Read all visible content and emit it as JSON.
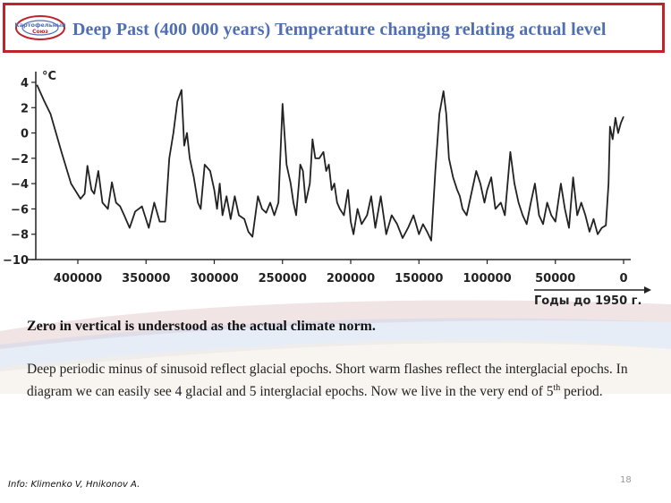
{
  "header": {
    "logo_text": "Картофельный Союз",
    "title": "Deep Past (400 000 years) Temperature changing relating actual level",
    "border_color": "#c0242b",
    "title_color": "#4f6fb4"
  },
  "chart_data": {
    "type": "line",
    "title": "",
    "ylabel": "°C",
    "xlabel": "Годы до 1950 г.",
    "ylim": [
      -10,
      4
    ],
    "xlim": [
      435000,
      -5000
    ],
    "yticks": [
      "4",
      "2",
      "0",
      "−2",
      "−4",
      "−6",
      "−8",
      "−10"
    ],
    "xticks": [
      "400000",
      "350000",
      "300000",
      "250000",
      "200000",
      "150000",
      "100000",
      "50000",
      "0"
    ],
    "grid": false,
    "x": [
      430000,
      425000,
      420000,
      412000,
      405000,
      398000,
      395000,
      393000,
      390000,
      388000,
      385000,
      382000,
      378000,
      375000,
      372000,
      369000,
      366000,
      362000,
      358000,
      353000,
      348000,
      344000,
      340000,
      336000,
      333000,
      330000,
      327000,
      324000,
      322000,
      320000,
      318000,
      315000,
      312000,
      310000,
      307000,
      303000,
      300000,
      298000,
      296000,
      294000,
      291000,
      288000,
      285000,
      282000,
      278000,
      275000,
      272000,
      268000,
      265000,
      262000,
      259000,
      256000,
      253000,
      250000,
      247000,
      244000,
      242000,
      240000,
      238000,
      237000,
      235000,
      233000,
      230000,
      228000,
      226000,
      223000,
      220000,
      218000,
      216000,
      214000,
      212000,
      210000,
      208000,
      205000,
      202000,
      200000,
      198000,
      195000,
      192000,
      188000,
      185000,
      182000,
      178000,
      174000,
      170000,
      166000,
      162000,
      158000,
      154000,
      150000,
      147000,
      144000,
      141000,
      138000,
      135000,
      132000,
      130000,
      128000,
      125000,
      122000,
      120000,
      118000,
      115000,
      112000,
      108000,
      105000,
      102000,
      100000,
      97000,
      94000,
      90000,
      87000,
      83000,
      80000,
      77000,
      74000,
      71000,
      68000,
      65000,
      62000,
      59000,
      56000,
      53000,
      50000,
      46000,
      43000,
      40000,
      37000,
      34000,
      31000,
      28000,
      25000,
      22000,
      19000,
      16000,
      13000,
      11000,
      10000,
      8000,
      6000,
      4000,
      2000,
      0
    ],
    "values": [
      3.8,
      2.6,
      1.5,
      -1.5,
      -4.0,
      -5.2,
      -4.8,
      -2.6,
      -4.5,
      -4.8,
      -3.0,
      -5.5,
      -6.0,
      -3.9,
      -5.5,
      -5.8,
      -6.5,
      -7.5,
      -6.2,
      -5.8,
      -7.5,
      -5.5,
      -7.0,
      -7.0,
      -2.0,
      0.0,
      2.5,
      3.4,
      -1.0,
      0.0,
      -2.0,
      -3.5,
      -5.5,
      -6.0,
      -2.5,
      -3.0,
      -4.5,
      -6.0,
      -4.0,
      -6.5,
      -5.0,
      -6.8,
      -5.0,
      -6.5,
      -6.8,
      -7.8,
      -8.2,
      -5.0,
      -6.0,
      -6.3,
      -5.5,
      -6.5,
      -5.5,
      2.3,
      -2.5,
      -4.0,
      -5.5,
      -6.5,
      -4.0,
      -2.5,
      -3.0,
      -5.5,
      -4.0,
      -0.5,
      -2.0,
      -2.0,
      -1.5,
      -3.0,
      -2.5,
      -4.5,
      -4.0,
      -5.5,
      -6.0,
      -6.5,
      -4.5,
      -7.0,
      -8.0,
      -6.0,
      -7.2,
      -6.5,
      -5.0,
      -7.5,
      -5.0,
      -8.0,
      -6.5,
      -7.2,
      -8.3,
      -7.5,
      -6.5,
      -8.0,
      -7.2,
      -7.8,
      -8.5,
      -3.0,
      1.5,
      3.3,
      1.5,
      -2.0,
      -3.5,
      -4.5,
      -5.0,
      -6.0,
      -6.5,
      -5.0,
      -3.0,
      -4.0,
      -5.5,
      -4.5,
      -3.5,
      -6.0,
      -5.5,
      -6.5,
      -1.5,
      -4.0,
      -5.5,
      -6.5,
      -7.2,
      -5.5,
      -4.0,
      -6.5,
      -7.2,
      -5.5,
      -6.5,
      -7.0,
      -4.0,
      -6.0,
      -7.5,
      -3.5,
      -6.5,
      -5.5,
      -6.5,
      -7.8,
      -6.8,
      -8.0,
      -7.5,
      -7.3,
      -4.0,
      0.5,
      -0.5,
      1.2,
      0.0,
      0.8,
      1.3
    ]
  },
  "body": {
    "zero_note": "Zero in vertical is understood as the actual climate norm.",
    "paragraph_part1": "Deep periodic minus of sinusoid reflect glacial epochs. Short warm flashes reflect the interglacial epochs. In diagram we can easily see 4 glacial and 5 interglacial epochs. Now we live in the very end of 5",
    "paragraph_sup": "th",
    "paragraph_part2": " period."
  },
  "footer": {
    "info": "Info: Klimenko V, Hnikonov A.",
    "page_number": "18"
  }
}
